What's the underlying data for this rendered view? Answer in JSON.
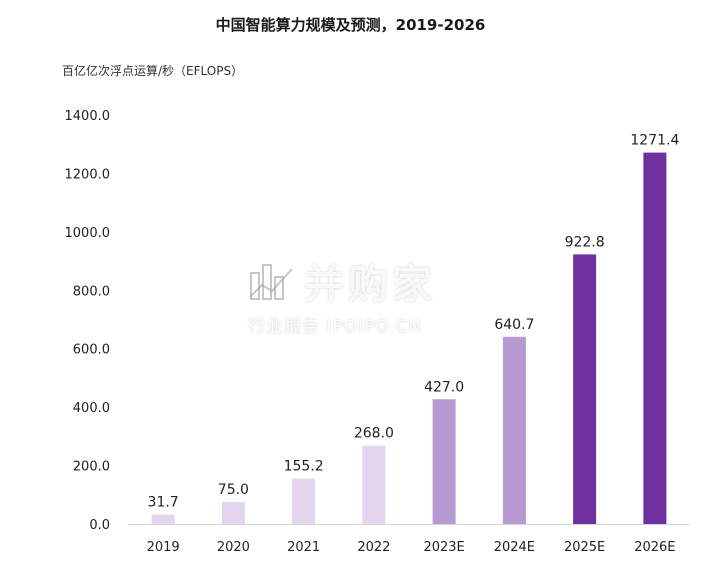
{
  "title": "中国智能算力规模及预测，2019-2026",
  "unit_label": "百亿亿次浮点运算/秒（EFLOPS）",
  "watermark": {
    "brand": "并购家",
    "subtitle": "行业报告 IPOIPO.CN"
  },
  "colors": {
    "axis": "#d9d9d9",
    "text": "#222222"
  },
  "chart_data": {
    "type": "bar",
    "title": "中国智能算力规模及预测，2019-2026",
    "ylabel": "百亿亿次浮点运算/秒（EFLOPS）",
    "xlabel": "",
    "categories": [
      "2019",
      "2020",
      "2021",
      "2022",
      "2023E",
      "2024E",
      "2025E",
      "2026E"
    ],
    "values": [
      31.7,
      75.0,
      155.2,
      268.0,
      427.0,
      640.7,
      922.8,
      1271.4
    ],
    "value_labels": [
      "31.7",
      "75.0",
      "155.2",
      "268.0",
      "427.0",
      "640.7",
      "922.8",
      "1271.4"
    ],
    "bar_colors": [
      "#e3d4ef",
      "#e3d4ef",
      "#e3d4ef",
      "#e3d4ef",
      "#b89ad3",
      "#b89ad3",
      "#7030a0",
      "#7030a0"
    ],
    "ylim": [
      0,
      1400
    ],
    "yticks": [
      "0.0",
      "200.0",
      "400.0",
      "600.0",
      "800.0",
      "1000.0",
      "1200.0",
      "1400.0"
    ],
    "grid": false,
    "legend": "none"
  }
}
